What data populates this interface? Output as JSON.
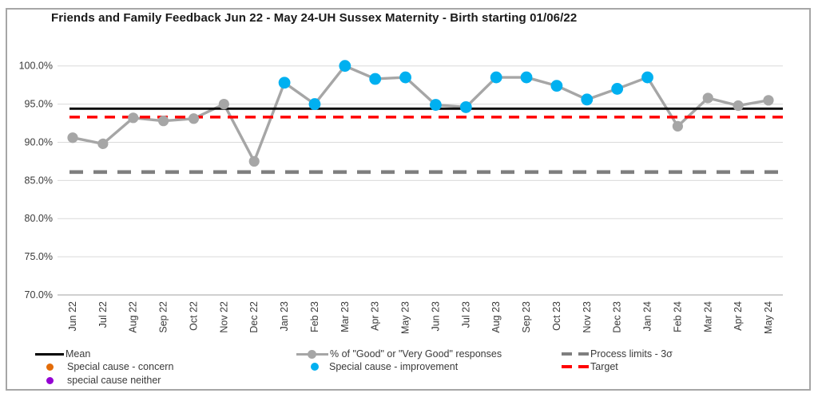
{
  "chart_data": {
    "type": "line",
    "title": "Friends and Family Feedback Jun 22 - May 24-UH Sussex Maternity - Birth starting 01/06/22",
    "categories": [
      "Jun 22",
      "Jul 22",
      "Aug 22",
      "Sep 22",
      "Oct 22",
      "Nov 22",
      "Dec 22",
      "Jan 23",
      "Feb 23",
      "Mar 23",
      "Apr 23",
      "May 23",
      "Jun 23",
      "Jul 23",
      "Aug 23",
      "Sep 23",
      "Oct 23",
      "Nov 23",
      "Dec 23",
      "Jan 24",
      "Feb 24",
      "Mar 24",
      "Apr 24",
      "May 24"
    ],
    "series": [
      {
        "name": "% of \"Good\" or \"Very Good\" responses",
        "values": [
          90.6,
          89.8,
          93.2,
          92.8,
          93.1,
          95.0,
          87.5,
          97.8,
          95.0,
          100.0,
          98.3,
          98.5,
          94.9,
          94.6,
          98.5,
          98.5,
          97.4,
          95.6,
          97.0,
          98.5,
          92.1,
          95.8,
          94.8,
          95.5
        ]
      }
    ],
    "point_status": [
      "common",
      "common",
      "common",
      "common",
      "common",
      "common",
      "common",
      "improvement",
      "improvement",
      "improvement",
      "improvement",
      "improvement",
      "improvement",
      "improvement",
      "improvement",
      "improvement",
      "improvement",
      "improvement",
      "improvement",
      "improvement",
      "common",
      "common",
      "common",
      "common"
    ],
    "mean": 94.4,
    "target": 93.3,
    "lower_process_limit": 86.1,
    "ylim": [
      70,
      100
    ],
    "yticks": [
      100,
      95,
      90,
      85,
      80,
      75,
      70
    ],
    "ytick_suffix": "%",
    "grid": true,
    "legend_position": "bottom"
  },
  "legend": {
    "mean": "Mean",
    "concern": "Special cause - concern",
    "neither": "special cause neither",
    "series": "% of \"Good\" or \"Very Good\" responses",
    "improvement": "Special cause  - improvement",
    "limits": "Process limits - 3σ",
    "target": "Target"
  },
  "colors": {
    "series_line": "#a6a6a6",
    "improvement_point": "#00b0f0",
    "common_point": "#a6a6a6",
    "concern_point": "#e36c09",
    "neither_point": "#9400d3",
    "mean_line": "#000000",
    "target_line": "#ff0000",
    "process_limits_line": "#7f7f7f",
    "gridline": "#d9d9d9",
    "axis_text": "#3a3a3a"
  }
}
